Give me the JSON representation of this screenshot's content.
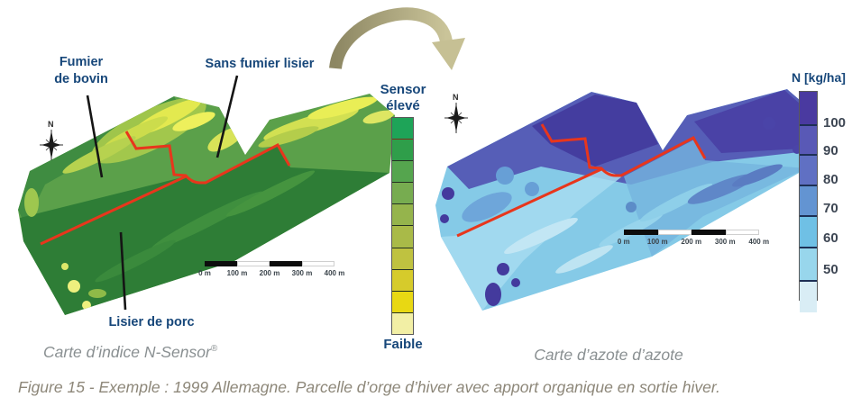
{
  "figure_caption": "Figure 15 - Exemple : 1999 Allemagne. Parcelle d’orge d’hiver avec apport organique en sortie hiver.",
  "left_map": {
    "caption": "Carte d’indice N-Sensor",
    "caption_sup": "®",
    "labels": {
      "fumier_line1": "Fumier",
      "fumier_line2": "de bovin",
      "sans_fumier": "Sans fumier lisier",
      "lisier": "Lisier de porc"
    },
    "compass_n": "N",
    "scalebar_ticks": [
      "0 m",
      "100 m",
      "200 m",
      "300 m",
      "400 m"
    ]
  },
  "sensor_scale": {
    "label_top_line1": "Sensor",
    "label_top_line2": "élevé",
    "label_bottom": "Faible",
    "segments": [
      "#1ea458",
      "#2f9e4a",
      "#55a54e",
      "#77ac50",
      "#95b44c",
      "#a9ba48",
      "#bfc240",
      "#d6cb2b",
      "#e8d813",
      "#f2efa5"
    ]
  },
  "right_map": {
    "caption": "Carte d’azote d’azote",
    "compass_n": "N",
    "scalebar_ticks": [
      "0 m",
      "100 m",
      "200 m",
      "300 m",
      "400 m"
    ]
  },
  "n_legend": {
    "title": "N [kg/ha]",
    "ticks": [
      "100",
      "90",
      "80",
      "70",
      "60",
      "50"
    ],
    "segments": [
      "#4a3aa0",
      "#5959b6",
      "#6070c3",
      "#6394d2",
      "#6fc0e5",
      "#98d6ec",
      "#d9edf5"
    ]
  },
  "colors": {
    "label_blue": "#17477a",
    "caption_gray": "#8a9092",
    "figure_caption_gray": "#8d8779",
    "red_line": "#e8361c",
    "tick_text": "#3d4653",
    "arrow_dark": "#8d8763",
    "arrow_light": "#cac499"
  }
}
